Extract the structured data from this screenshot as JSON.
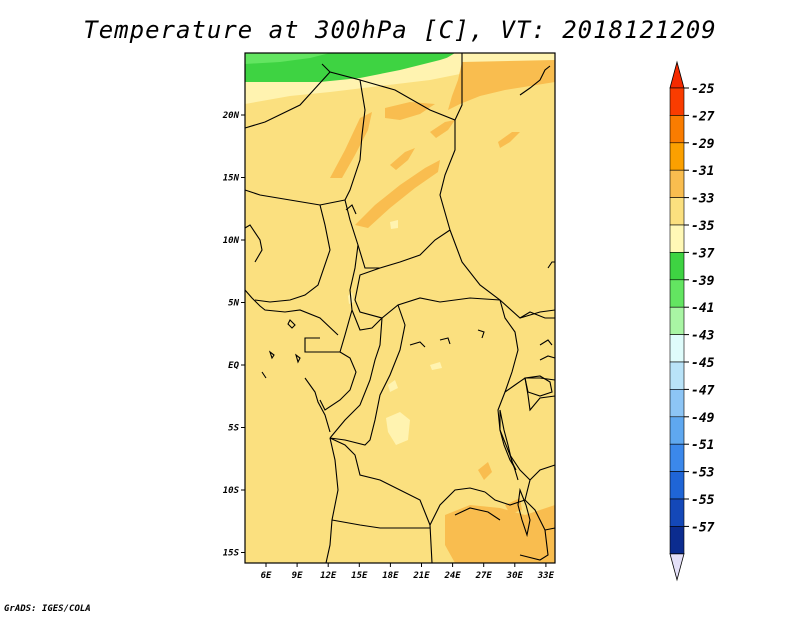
{
  "title": "Temperature at 300hPa [C], VT: 2018121209",
  "credit": "GrADS: IGES/COLA",
  "map": {
    "lon_ticks": [
      "6E",
      "9E",
      "12E",
      "15E",
      "18E",
      "21E",
      "24E",
      "27E",
      "30E",
      "33E"
    ],
    "lat_ticks": [
      "20N",
      "15N",
      "10N",
      "5N",
      "EQ",
      "5S",
      "10S",
      "15S"
    ],
    "lon_range": [
      4,
      33.5
    ],
    "lat_range": [
      -16.5,
      24.5
    ],
    "base_fill_color": "#fbe07f",
    "warm_patch_color": "#f9bd4f",
    "cool_patch_color": "#fff3b0",
    "green_band_color": "#3ed342",
    "light_green_color": "#63e561"
  },
  "colorbar": {
    "labels": [
      "-25",
      "-27",
      "-29",
      "-31",
      "-33",
      "-35",
      "-37",
      "-39",
      "-41",
      "-43",
      "-45",
      "-47",
      "-49",
      "-51",
      "-53",
      "-55",
      "-57"
    ],
    "colors": [
      "#fa3c00",
      "#fa7c00",
      "#fba000",
      "#f9bd4f",
      "#fbe07f",
      "#fff8b6",
      "#3ed342",
      "#63e561",
      "#a9f5a4",
      "#dffcfb",
      "#b9e3f8",
      "#8dc5f5",
      "#5fa8f0",
      "#3b88eb",
      "#1f65d6",
      "#1448b8",
      "#0b2c8f"
    ],
    "top_triangle_color": "#f52a00",
    "bottom_triangle_color": "#e4e0f8"
  }
}
